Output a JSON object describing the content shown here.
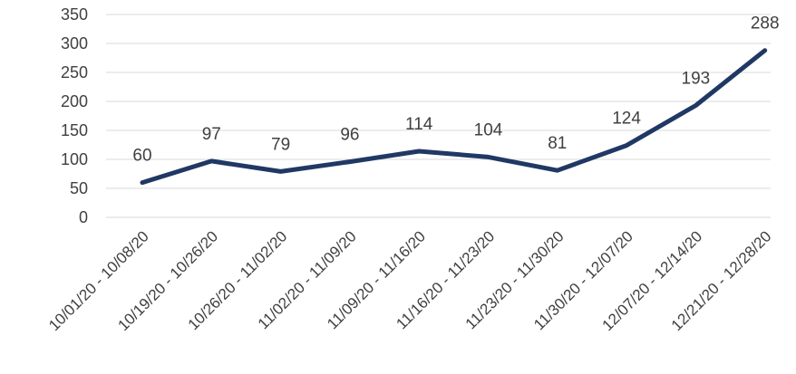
{
  "chart_data": {
    "type": "line",
    "title": "",
    "xlabel": "",
    "ylabel": "",
    "categories": [
      "10/01/20 - 10/08/20",
      "10/19/20 - 10/26/20",
      "10/26/20 - 11/02/20",
      "11/02/20 - 11/09/20",
      "11/09/20 - 11/16/20",
      "11/16/20 - 11/23/20",
      "11/23/20 - 11/30/20",
      "11/30/20 - 12/07/20",
      "12/07/20 - 12/14/20",
      "12/21/20 - 12/28/20"
    ],
    "series": [
      {
        "values": [
          60,
          97,
          79,
          96,
          114,
          104,
          81,
          124,
          193,
          288
        ]
      }
    ],
    "ylim": [
      0,
      350
    ],
    "yticks": [
      0,
      50,
      100,
      150,
      200,
      250,
      300,
      350
    ],
    "grid": true,
    "legend": "none",
    "data_labels": true,
    "colors": {
      "line": "#203864",
      "grid": "#d9d9d9",
      "text": "#404040"
    }
  }
}
